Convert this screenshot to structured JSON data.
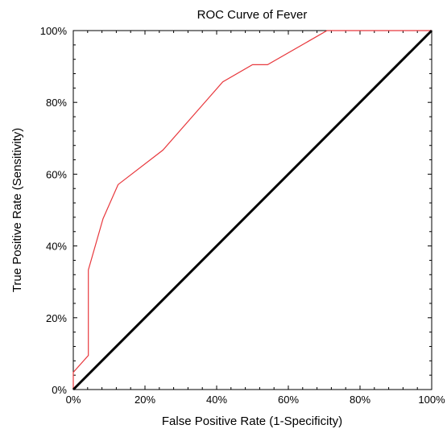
{
  "chart_data": {
    "type": "line",
    "title": "ROC Curve of Fever",
    "xlabel": "False Positive Rate (1-Specificity)",
    "ylabel": "True Positive Rate (Sensitivity)",
    "xlim": [
      0,
      100
    ],
    "ylim": [
      0,
      100
    ],
    "x_ticks": [
      "0%",
      "20%",
      "40%",
      "60%",
      "80%",
      "100%"
    ],
    "y_ticks": [
      "0%",
      "20%",
      "40%",
      "60%",
      "80%",
      "100%"
    ],
    "grid": false,
    "legend": "none",
    "series": [
      {
        "color": "#e8383d",
        "x": [
          0,
          0,
          4.2,
          4.2,
          8.3,
          12.5,
          25,
          41.7,
          50,
          54.2,
          70.8,
          100
        ],
        "y": [
          0,
          4.8,
          9.5,
          33.3,
          47.6,
          57.1,
          66.7,
          85.7,
          90.5,
          90.5,
          100,
          100
        ]
      },
      {
        "color": "#000000",
        "x": [
          0,
          100
        ],
        "y": [
          0,
          100
        ]
      }
    ]
  }
}
